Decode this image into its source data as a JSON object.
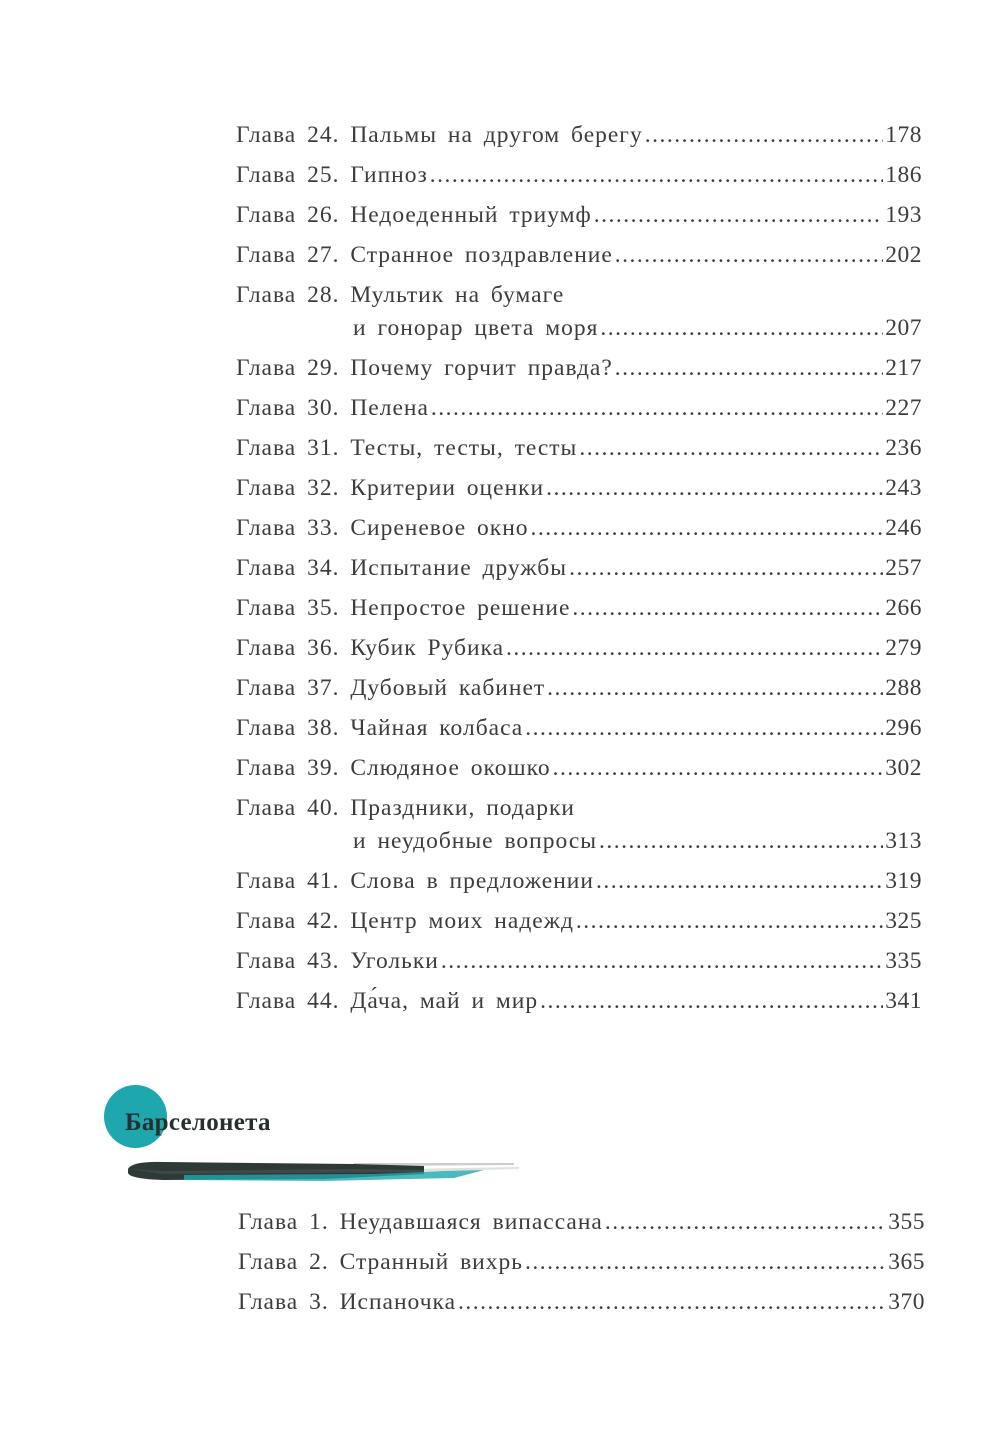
{
  "toc_part1": [
    {
      "label": "Глава 24.",
      "title": "Пальмы на другом берегу",
      "page": "178"
    },
    {
      "label": "Глава 25.",
      "title": "Гипноз",
      "page": "186"
    },
    {
      "label": "Глава 26.",
      "title": "Недоеденный триумф",
      "page": "193"
    },
    {
      "label": "Глава 27.",
      "title": "Странное поздравление",
      "page": "202"
    },
    {
      "label": "Глава 28.",
      "title": "Мультик на бумаге",
      "title_cont": "и гонорар цвета моря",
      "page": "207"
    },
    {
      "label": "Глава 29.",
      "title": "Почему горчит правда?",
      "page": "217"
    },
    {
      "label": "Глава 30.",
      "title": "Пелена",
      "page": "227"
    },
    {
      "label": "Глава 31.",
      "title": "Тесты, тесты, тесты",
      "page": "236"
    },
    {
      "label": "Глава 32.",
      "title": "Критерии оценки",
      "page": "243"
    },
    {
      "label": "Глава 33.",
      "title": "Сиреневое окно",
      "page": "246"
    },
    {
      "label": "Глава 34.",
      "title": "Испытание дружбы",
      "page": "257"
    },
    {
      "label": "Глава 35.",
      "title": "Непростое решение",
      "page": "266"
    },
    {
      "label": "Глава 36.",
      "title": "Кубик Рубика",
      "page": "279"
    },
    {
      "label": "Глава 37.",
      "title": "Дубовый кабинет",
      "page": "288"
    },
    {
      "label": "Глава 38.",
      "title": "Чайная колбаса",
      "page": "296"
    },
    {
      "label": "Глава 39.",
      "title": "Слюдяное окошко",
      "page": "302"
    },
    {
      "label": "Глава 40.",
      "title": "Праздники, подарки",
      "title_cont": "и неудобные вопросы",
      "page": "313"
    },
    {
      "label": "Глава 41.",
      "title": "Слова в предложении",
      "page": "319"
    },
    {
      "label": "Глава 42.",
      "title": "Центр моих надежд",
      "page": "325"
    },
    {
      "label": "Глава 43.",
      "title": "Угольки",
      "page": "335"
    },
    {
      "label": "Глава 44.",
      "title": "Да́ча, май и мир",
      "page": "341"
    }
  ],
  "section": {
    "title": "Барселонета",
    "accent_color": "#1ea7ae",
    "brush_color": "#2f3a38"
  },
  "toc_part2": [
    {
      "label": "Глава 1.",
      "title": "Неудавшаяся випассана",
      "page": "355"
    },
    {
      "label": "Глава 2.",
      "title": "Странный вихрь",
      "page": "365"
    },
    {
      "label": "Глава 3.",
      "title": "Испаночка",
      "page": "370"
    }
  ]
}
